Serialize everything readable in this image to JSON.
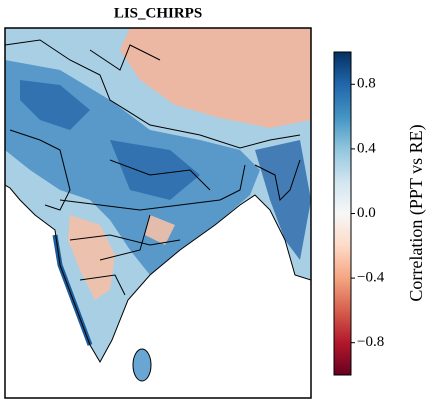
{
  "title": "LIS_CHIRPS",
  "colorbar": {
    "label": "Correlation (PPT vs RE)",
    "lim": [
      -1,
      1
    ],
    "ticks": [
      {
        "value": -0.8,
        "label": "−0.8"
      },
      {
        "value": -0.4,
        "label": "−0.4"
      },
      {
        "value": 0,
        "label": "0.0"
      },
      0.4,
      0.8
    ]
  }
}
